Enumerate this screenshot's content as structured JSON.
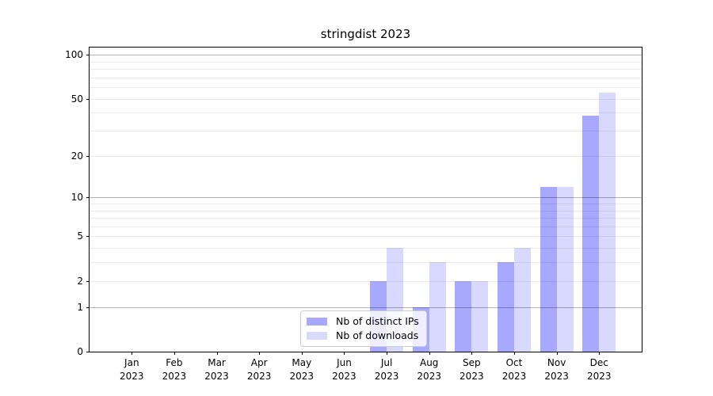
{
  "chart_data": {
    "type": "bar",
    "title": "stringdist 2023",
    "categories": [
      "Jan",
      "Feb",
      "Mar",
      "Apr",
      "May",
      "Jun",
      "Jul",
      "Aug",
      "Sep",
      "Oct",
      "Nov",
      "Dec"
    ],
    "x_tick_second_line": "2023",
    "series": [
      {
        "name": "Nb of distinct IPs",
        "color_hex": "#a6a6f0",
        "fill": "rgba(0,0,255,0.34)",
        "values": [
          0,
          0,
          0,
          0,
          0,
          0,
          2,
          1,
          2,
          3,
          12,
          38
        ]
      },
      {
        "name": "Nb of downloads",
        "color_hex": "#d9d9f8",
        "fill": "rgba(0,0,255,0.15)",
        "values": [
          0,
          0,
          0,
          0,
          0,
          0,
          4,
          3,
          2,
          4,
          12,
          55
        ]
      }
    ],
    "yscale": "log1p",
    "ylim": [
      0,
      112
    ],
    "yticks": [
      0,
      1,
      2,
      5,
      10,
      20,
      50,
      100
    ],
    "gridlines": {
      "major_values": [
        1,
        10,
        100
      ],
      "minor_values": [
        2,
        3,
        4,
        5,
        6,
        7,
        8,
        9,
        20,
        30,
        40,
        50,
        60,
        70,
        80,
        90
      ],
      "major_color": "rgba(0,0,0,0.30)",
      "minor_color": "rgba(0,0,0,0.08)"
    },
    "legend": {
      "position": "bottom-center",
      "entries": [
        "Nb of distinct IPs",
        "Nb of downloads"
      ]
    },
    "grid": true
  }
}
